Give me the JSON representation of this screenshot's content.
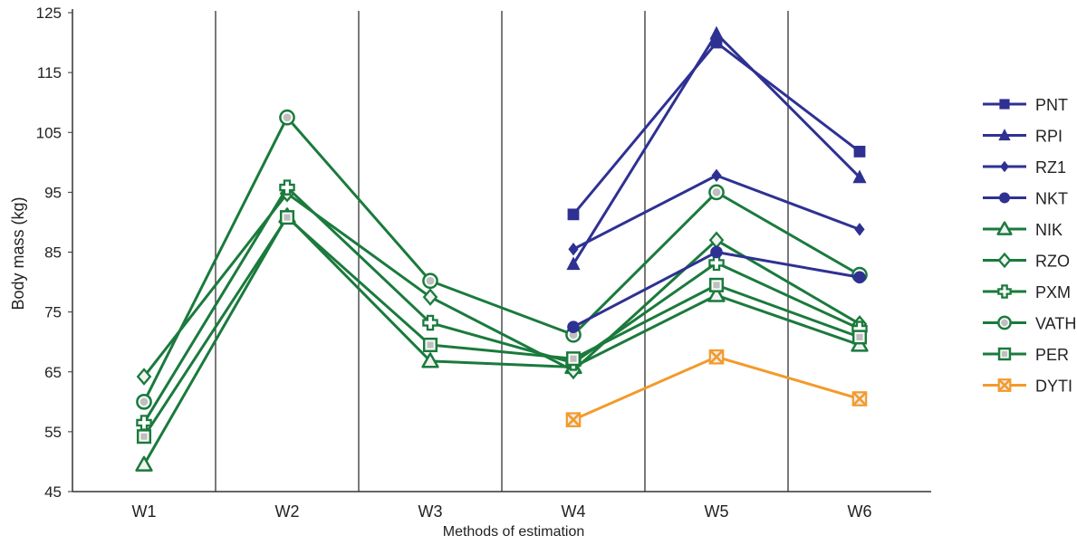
{
  "chart_data": {
    "type": "line",
    "xlabel": "Methods of estimation",
    "ylabel": "Body mass (kg)",
    "categories": [
      "W1",
      "W2",
      "W3",
      "W4",
      "W5",
      "W6"
    ],
    "ylim": [
      45,
      125
    ],
    "yticks": [
      "45",
      "55",
      "65",
      "75",
      "85",
      "95",
      "105",
      "115",
      "125"
    ],
    "grid": "vertical separators between categories",
    "legend_position": "right",
    "colors": {
      "blue": "#2e3192",
      "green": "#1a7a3c",
      "orange": "#f39a2a",
      "axis": "#333333"
    },
    "series": [
      {
        "name": "PNT",
        "color": "#2e3192",
        "marker": "square",
        "values": [
          null,
          null,
          null,
          91.3,
          120.0,
          101.8
        ]
      },
      {
        "name": "RPI",
        "color": "#2e3192",
        "marker": "triangle",
        "values": [
          null,
          null,
          null,
          83.0,
          121.5,
          97.5
        ]
      },
      {
        "name": "RZ1",
        "color": "#2e3192",
        "marker": "diamond",
        "values": [
          null,
          null,
          null,
          85.5,
          97.8,
          88.8
        ]
      },
      {
        "name": "NKT",
        "color": "#2e3192",
        "marker": "circle",
        "values": [
          null,
          null,
          null,
          72.5,
          85.0,
          80.8
        ]
      },
      {
        "name": "NIK",
        "color": "#1a7a3c",
        "marker": "triangle",
        "values": [
          49.5,
          91.0,
          66.8,
          65.8,
          77.8,
          69.5
        ]
      },
      {
        "name": "RZO",
        "color": "#1a7a3c",
        "marker": "diamond",
        "values": [
          64.2,
          94.8,
          77.5,
          65.2,
          87.0,
          73.0
        ]
      },
      {
        "name": "PXM",
        "color": "#1a7a3c",
        "marker": "cross",
        "values": [
          56.5,
          95.8,
          73.2,
          66.5,
          83.2,
          72.2
        ]
      },
      {
        "name": "VATH",
        "color": "#1a7a3c",
        "marker": "circle",
        "values": [
          60.0,
          107.5,
          80.2,
          71.2,
          95.0,
          81.2
        ]
      },
      {
        "name": "PER",
        "color": "#1a7a3c",
        "marker": "square",
        "values": [
          54.2,
          90.8,
          69.5,
          67.2,
          79.5,
          70.8
        ]
      },
      {
        "name": "DYTI",
        "color": "#f39a2a",
        "marker": "x-square",
        "values": [
          null,
          null,
          null,
          57.0,
          67.5,
          60.5
        ]
      }
    ]
  }
}
